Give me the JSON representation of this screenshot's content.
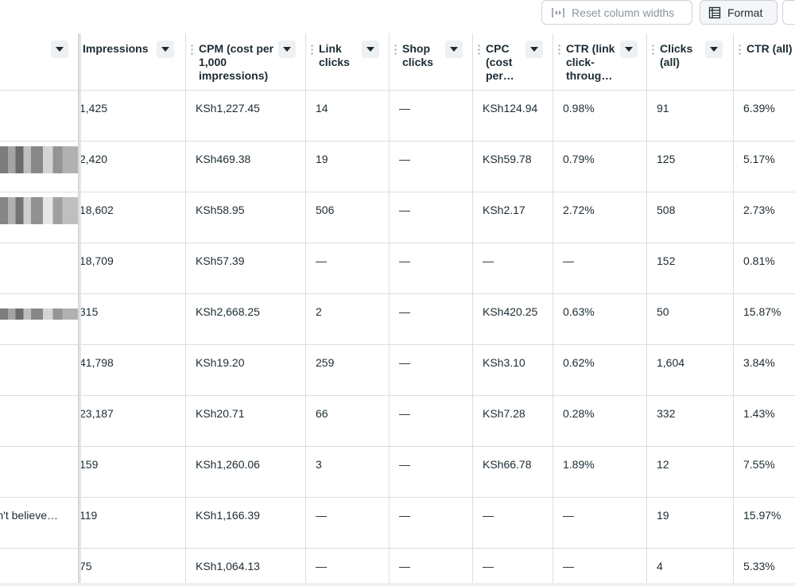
{
  "toolbar": {
    "reset_label": "Reset column widths",
    "format_label": "Format"
  },
  "columns": [
    {
      "label": ""
    },
    {
      "label": "Impressions"
    },
    {
      "label": "CPM (cost per 1,000 impressions)"
    },
    {
      "label": "Link clicks"
    },
    {
      "label": "Shop clicks"
    },
    {
      "label": "CPC (cost per…"
    },
    {
      "label": "CTR (link click-throug…"
    },
    {
      "label": "Clicks (all)"
    },
    {
      "label": "CTR (all)"
    }
  ],
  "rows": [
    {
      "name": "",
      "impressions": "1,425",
      "cpm": "KSh1,227.45",
      "link_clicks": "14",
      "shop_clicks": "—",
      "cpc": "KSh124.94",
      "ctr_link": "0.98%",
      "clicks_all": "91",
      "ctr_all": "6.39%"
    },
    {
      "name": "",
      "impressions": "2,420",
      "cpm": "KSh469.38",
      "link_clicks": "19",
      "shop_clicks": "—",
      "cpc": "KSh59.78",
      "ctr_link": "0.79%",
      "clicks_all": "125",
      "ctr_all": "5.17%"
    },
    {
      "name": "",
      "impressions": "18,602",
      "cpm": "KSh58.95",
      "link_clicks": "506",
      "shop_clicks": "—",
      "cpc": "KSh2.17",
      "ctr_link": "2.72%",
      "clicks_all": "508",
      "ctr_all": "2.73%"
    },
    {
      "name": "",
      "impressions": "18,709",
      "cpm": "KSh57.39",
      "link_clicks": "—",
      "shop_clicks": "—",
      "cpc": "—",
      "ctr_link": "—",
      "clicks_all": "152",
      "ctr_all": "0.81%"
    },
    {
      "name": "",
      "impressions": "315",
      "cpm": "KSh2,668.25",
      "link_clicks": "2",
      "shop_clicks": "—",
      "cpc": "KSh420.25",
      "ctr_link": "0.63%",
      "clicks_all": "50",
      "ctr_all": "15.87%"
    },
    {
      "name": "",
      "impressions": "41,798",
      "cpm": "KSh19.20",
      "link_clicks": "259",
      "shop_clicks": "—",
      "cpc": "KSh3.10",
      "ctr_link": "0.62%",
      "clicks_all": "1,604",
      "ctr_all": "3.84%"
    },
    {
      "name": "",
      "impressions": "23,187",
      "cpm": "KSh20.71",
      "link_clicks": "66",
      "shop_clicks": "—",
      "cpc": "KSh7.28",
      "ctr_link": "0.28%",
      "clicks_all": "332",
      "ctr_all": "1.43%"
    },
    {
      "name": "",
      "impressions": "159",
      "cpm": "KSh1,260.06",
      "link_clicks": "3",
      "shop_clicks": "—",
      "cpc": "KSh66.78",
      "ctr_link": "1.89%",
      "clicks_all": "12",
      "ctr_all": "7.55%"
    },
    {
      "name": "n't believe…",
      "impressions": "119",
      "cpm": "KSh1,166.39",
      "link_clicks": "—",
      "shop_clicks": "—",
      "cpc": "—",
      "ctr_link": "—",
      "clicks_all": "19",
      "ctr_all": "15.97%"
    },
    {
      "name": "",
      "impressions": "75",
      "cpm": "KSh1,064.13",
      "link_clicks": "—",
      "shop_clicks": "—",
      "cpc": "—",
      "ctr_link": "—",
      "clicks_all": "4",
      "ctr_all": "5.33%"
    }
  ],
  "icons": {
    "reset": "reset-columns-icon",
    "format": "table-format-icon"
  }
}
